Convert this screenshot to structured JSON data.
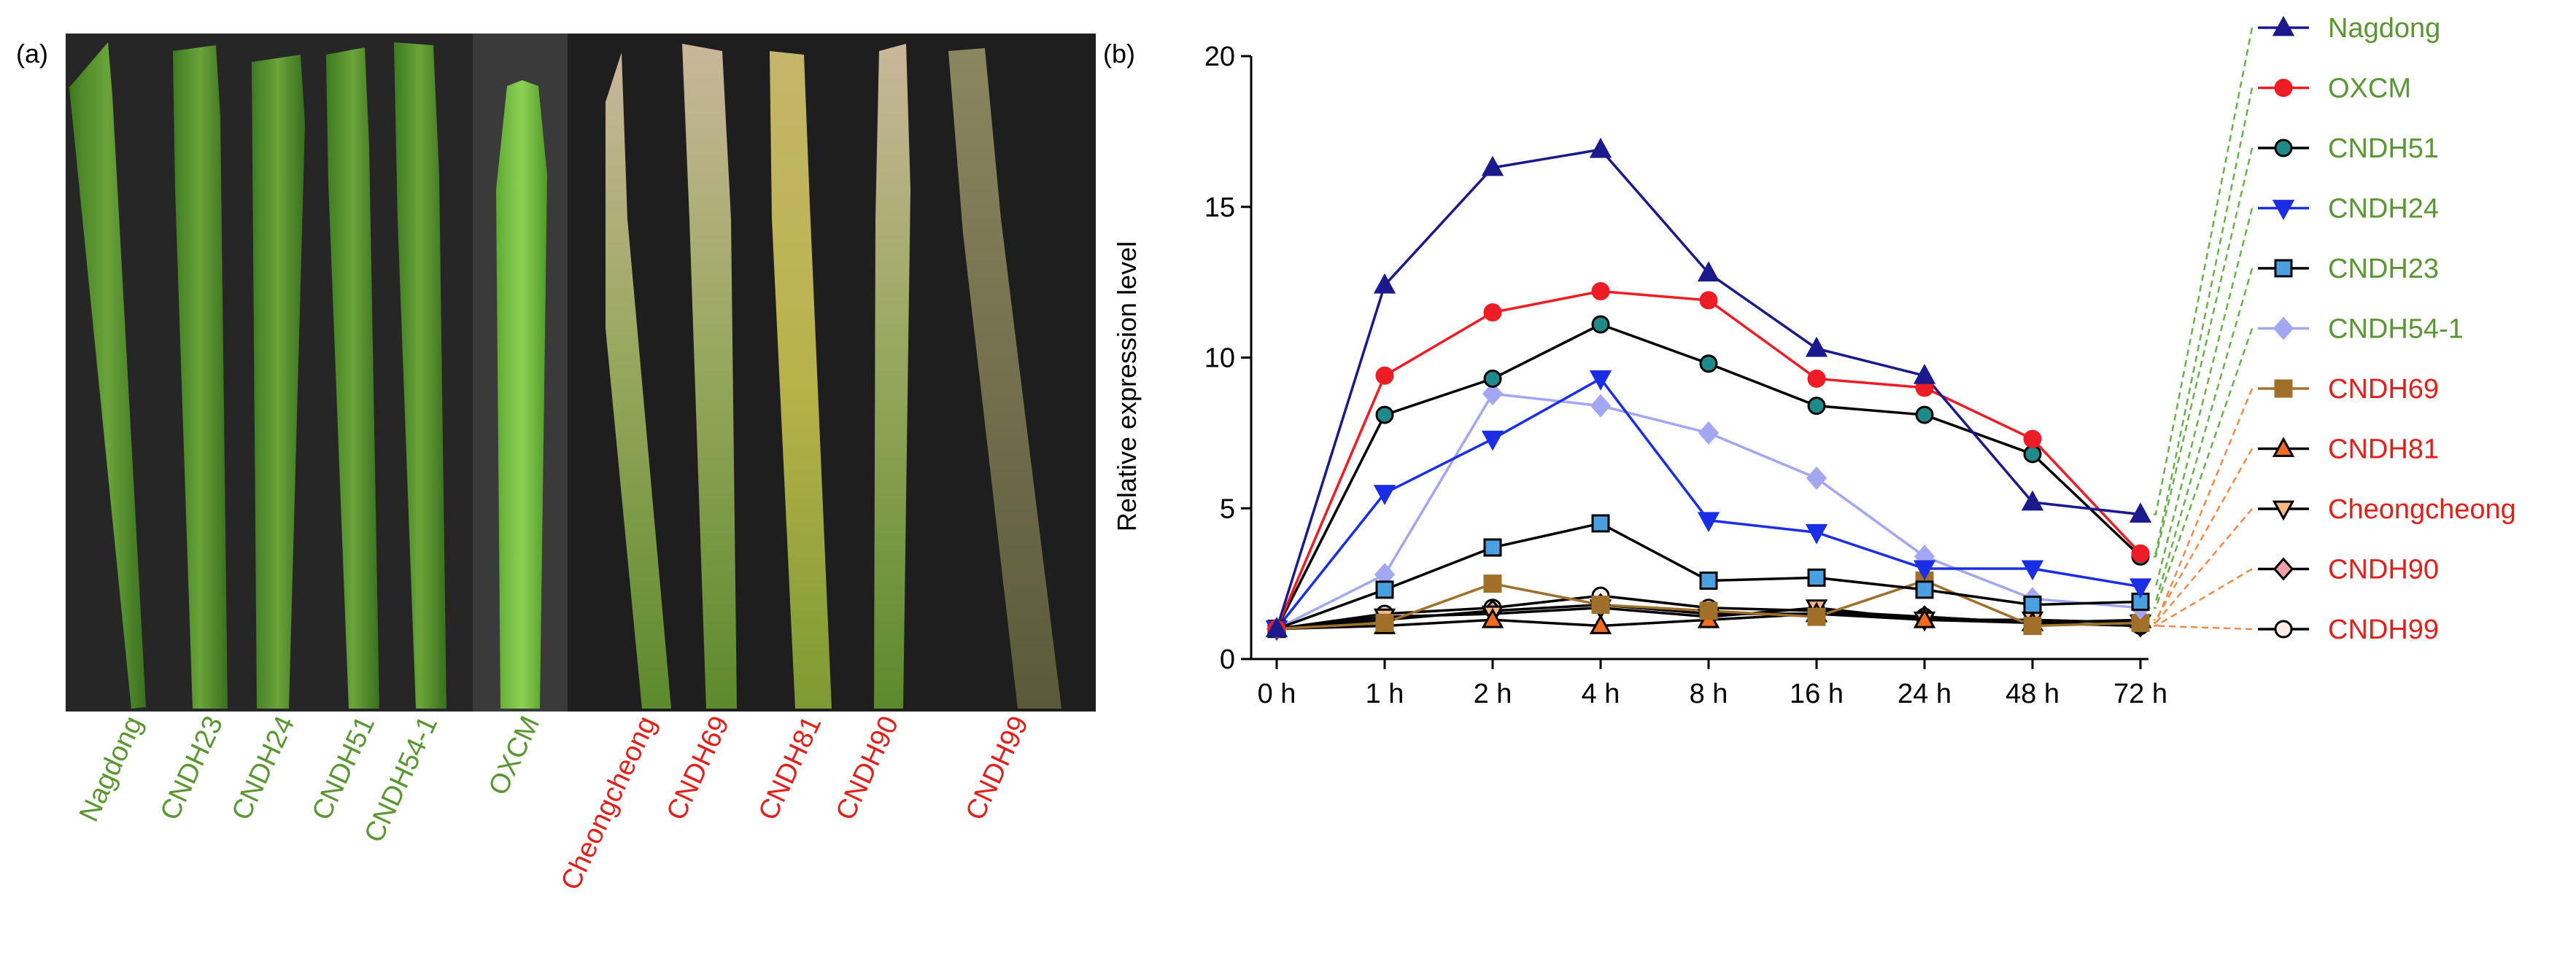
{
  "panel_a": {
    "label": "(a)",
    "cultivars": [
      {
        "name": "Nagdong",
        "group": "resistant"
      },
      {
        "name": "CNDH23",
        "group": "resistant"
      },
      {
        "name": "CNDH24",
        "group": "resistant"
      },
      {
        "name": "CNDH51",
        "group": "resistant"
      },
      {
        "name": "CNDH54-1",
        "group": "resistant"
      },
      {
        "name": "OXCM",
        "group": "resistant"
      },
      {
        "name": "Cheongcheong",
        "group": "susceptible"
      },
      {
        "name": "CNDH69",
        "group": "susceptible"
      },
      {
        "name": "CNDH81",
        "group": "susceptible"
      },
      {
        "name": "CNDH90",
        "group": "susceptible"
      },
      {
        "name": "CNDH99",
        "group": "susceptible"
      }
    ]
  },
  "colors": {
    "resistant_label": "#5a9632",
    "susceptible_label": "#e0201b",
    "resistant_connector": "#6ab04c",
    "susceptible_connector": "#f08a4b",
    "axis": "#000000",
    "photo_background": "#262626"
  },
  "chart_data": {
    "type": "line",
    "panel_label": "(b)",
    "title": "",
    "xlabel": "",
    "ylabel": "Relative expression level",
    "categories": [
      "0 h",
      "1 h",
      "2 h",
      "4 h",
      "8 h",
      "16 h",
      "24 h",
      "48 h",
      "72 h"
    ],
    "ylim": [
      0,
      20
    ],
    "yticks": [
      0,
      5,
      10,
      15,
      20
    ],
    "grid": false,
    "legend_position": "right",
    "series": [
      {
        "name": "Nagdong",
        "group": "resistant",
        "marker": "triangle-up",
        "color": "#1a1a8c",
        "fill": "#1a1a8c",
        "values": [
          1.0,
          12.4,
          16.3,
          16.9,
          12.8,
          10.3,
          9.4,
          5.2,
          4.8
        ]
      },
      {
        "name": "OXCM",
        "group": "resistant",
        "marker": "circle",
        "color": "#ee1c24",
        "fill": "#ee1c24",
        "values": [
          1.0,
          9.4,
          11.5,
          12.2,
          11.9,
          9.3,
          9.0,
          7.3,
          3.5
        ]
      },
      {
        "name": "CNDH51",
        "group": "resistant",
        "marker": "circle",
        "color": "#000000",
        "fill": "#1f8a8a",
        "values": [
          1.0,
          8.1,
          9.3,
          11.1,
          9.8,
          8.4,
          8.1,
          6.8,
          3.4
        ]
      },
      {
        "name": "CNDH24",
        "group": "resistant",
        "marker": "triangle-down",
        "color": "#1a2ee6",
        "fill": "#1a2ee6",
        "values": [
          1.0,
          5.5,
          7.3,
          9.3,
          4.6,
          4.2,
          3.0,
          3.0,
          2.4
        ]
      },
      {
        "name": "CNDH23",
        "group": "resistant",
        "marker": "square",
        "color": "#000000",
        "fill": "#4a9fe0",
        "values": [
          1.0,
          2.3,
          3.7,
          4.5,
          2.6,
          2.7,
          2.3,
          1.8,
          1.9
        ]
      },
      {
        "name": "CNDH54-1",
        "group": "resistant",
        "marker": "diamond",
        "color": "#a3a6f0",
        "fill": "#a3a6f0",
        "values": [
          1.0,
          2.8,
          8.8,
          8.4,
          7.5,
          6.0,
          3.4,
          2.0,
          1.7
        ]
      },
      {
        "name": "CNDH69",
        "group": "susceptible",
        "marker": "square",
        "color": "#a0702a",
        "fill": "#a0702a",
        "values": [
          1.0,
          1.2,
          2.5,
          1.8,
          1.6,
          1.4,
          2.6,
          1.1,
          1.2
        ]
      },
      {
        "name": "CNDH81",
        "group": "susceptible",
        "marker": "triangle-up",
        "color": "#000000",
        "fill": "#f26b21",
        "values": [
          1.0,
          1.1,
          1.3,
          1.1,
          1.3,
          1.5,
          1.3,
          1.2,
          1.3
        ]
      },
      {
        "name": "Cheongcheong",
        "group": "susceptible",
        "marker": "triangle-down",
        "color": "#000000",
        "fill": "#f7b886",
        "values": [
          1.0,
          1.4,
          1.5,
          1.7,
          1.4,
          1.7,
          1.3,
          1.3,
          1.2
        ]
      },
      {
        "name": "CNDH90",
        "group": "susceptible",
        "marker": "diamond",
        "color": "#000000",
        "fill": "#f1a0a8",
        "values": [
          1.0,
          1.3,
          1.6,
          1.8,
          1.5,
          1.5,
          1.4,
          1.2,
          1.1
        ]
      },
      {
        "name": "CNDH99",
        "group": "susceptible",
        "marker": "circle",
        "color": "#000000",
        "fill": "#fbeee6",
        "values": [
          1.0,
          1.5,
          1.7,
          2.1,
          1.7,
          1.6,
          1.4,
          1.2,
          1.1
        ]
      }
    ]
  }
}
